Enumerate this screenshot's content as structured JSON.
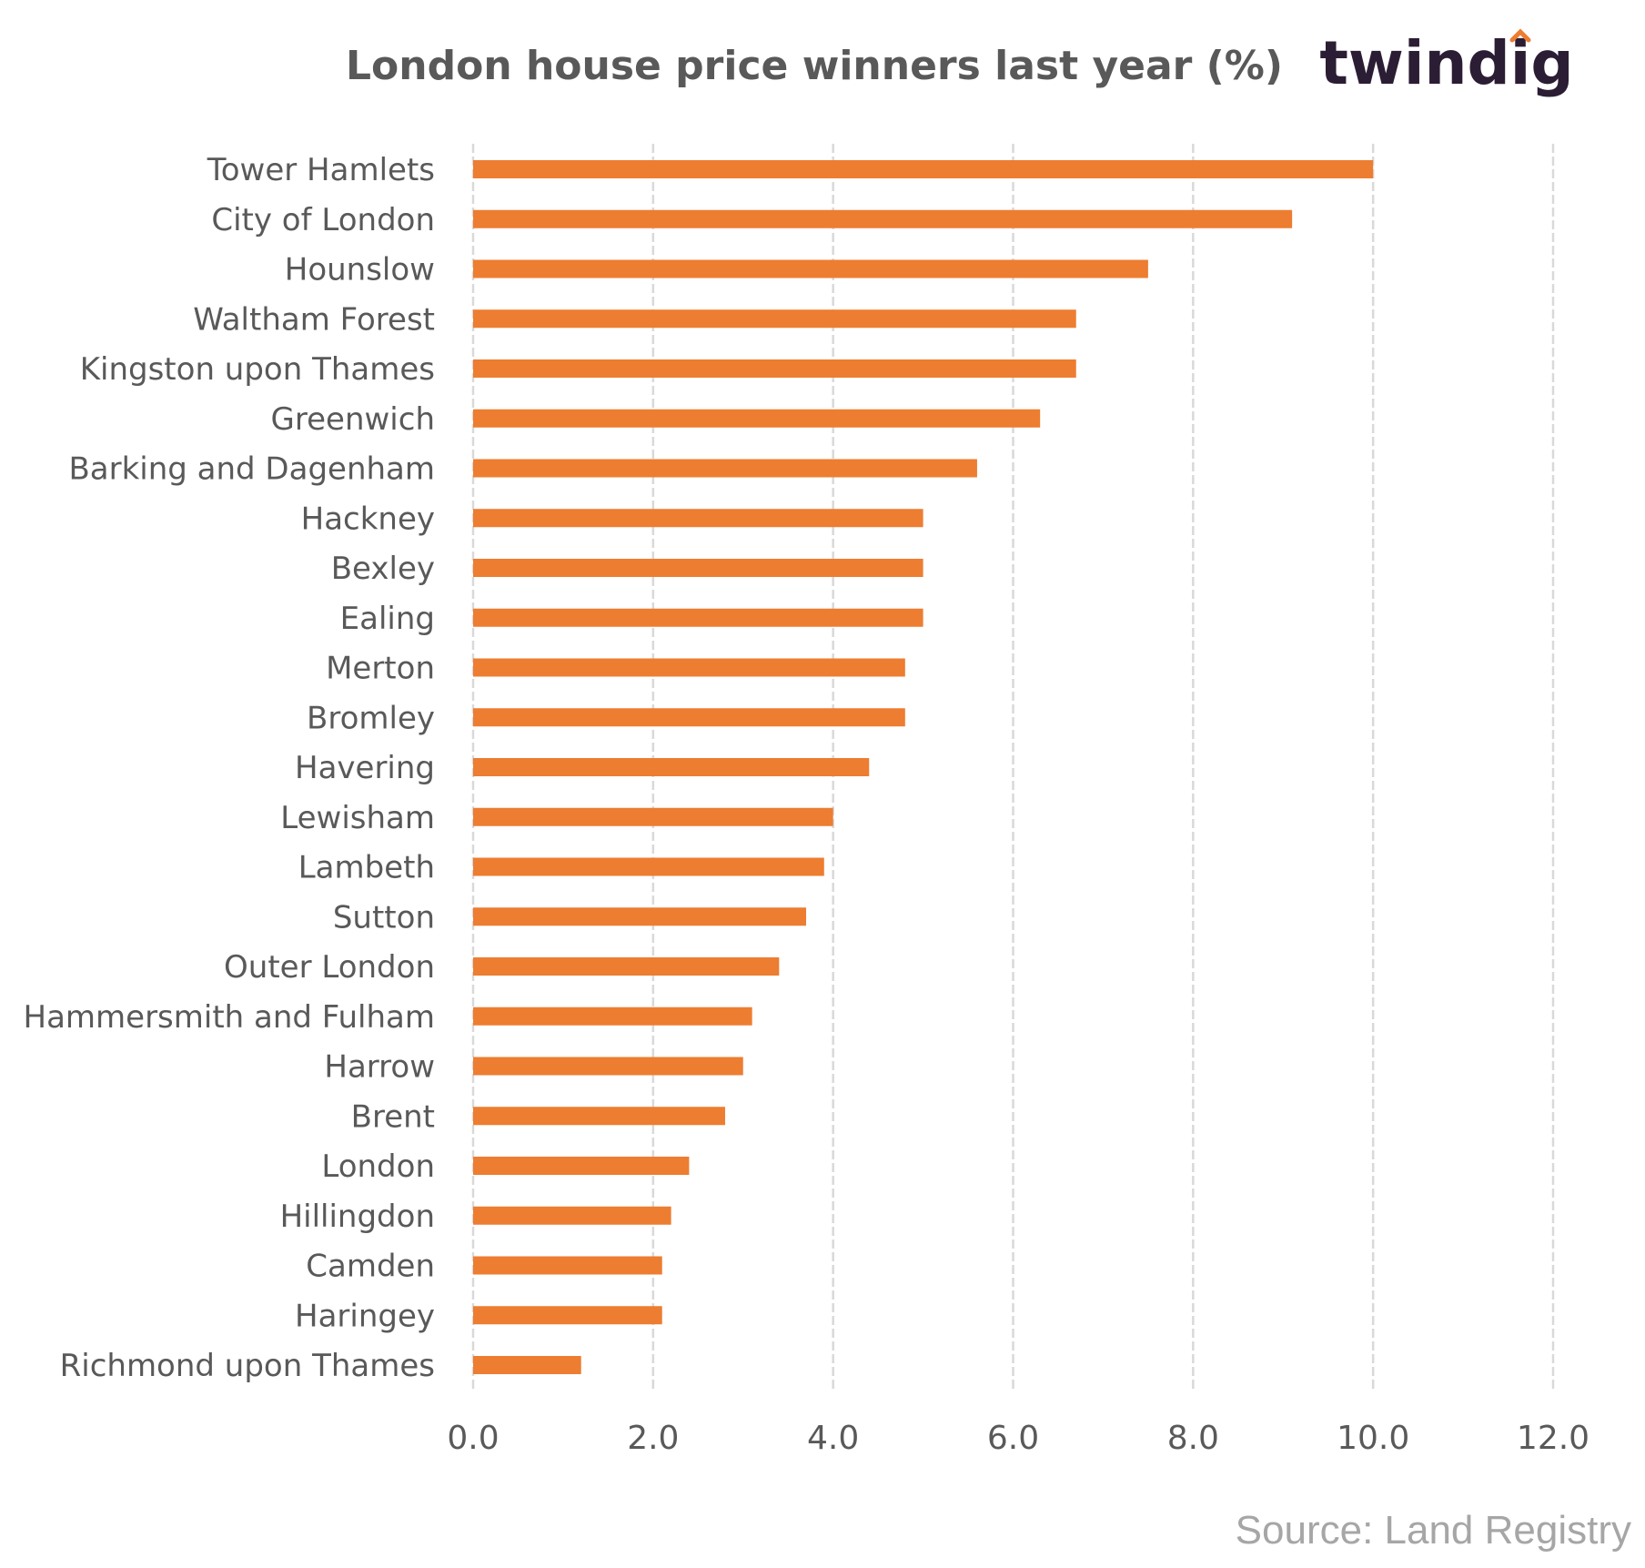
{
  "chart_data": {
    "type": "bar",
    "orientation": "horizontal",
    "title": "London house price winners last year (%)",
    "categories": [
      "Tower Hamlets",
      "City of London",
      "Hounslow",
      "Waltham Forest",
      "Kingston upon Thames",
      "Greenwich",
      "Barking and Dagenham",
      "Hackney",
      "Bexley",
      "Ealing",
      "Merton",
      "Bromley",
      "Havering",
      "Lewisham",
      "Lambeth",
      "Sutton",
      "Outer London",
      "Hammersmith and Fulham",
      "Harrow",
      "Brent",
      "London",
      "Hillingdon",
      "Camden",
      "Haringey",
      "Richmond upon Thames"
    ],
    "values": [
      10.0,
      9.1,
      7.5,
      6.7,
      6.7,
      6.3,
      5.6,
      5.0,
      5.0,
      5.0,
      4.8,
      4.8,
      4.4,
      4.0,
      3.9,
      3.7,
      3.4,
      3.1,
      3.0,
      2.8,
      2.4,
      2.2,
      2.1,
      2.1,
      1.2
    ],
    "xlim": [
      0,
      12
    ],
    "ticks": [
      "0.0",
      "2.0",
      "4.0",
      "6.0",
      "8.0",
      "10.0",
      "12.0"
    ],
    "grid": true,
    "bar_color": "#ed7d31"
  },
  "logo_text": "twindig",
  "logo_accent_color": "#ed7d31",
  "source": "Source: Land Registry"
}
